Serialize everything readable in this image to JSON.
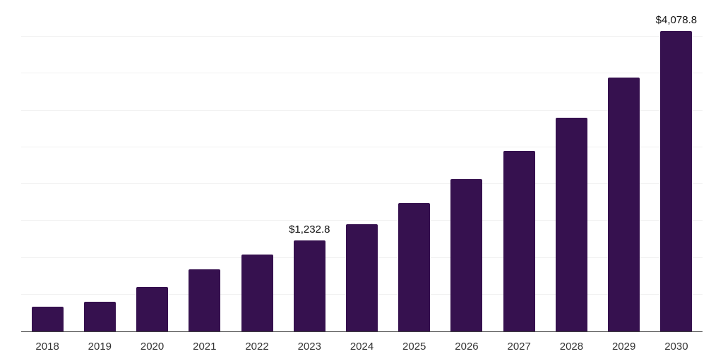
{
  "chart_data": {
    "type": "bar",
    "categories": [
      "2018",
      "2019",
      "2020",
      "2021",
      "2022",
      "2023",
      "2024",
      "2025",
      "2026",
      "2027",
      "2028",
      "2029",
      "2030"
    ],
    "values": [
      340,
      405,
      605,
      845,
      1040,
      1232.8,
      1455,
      1740,
      2065,
      2450,
      2900,
      3445,
      4078.8
    ],
    "title": "",
    "xlabel": "",
    "ylabel": "",
    "ylim": [
      0,
      4500
    ],
    "grid_step": 500,
    "grid": true,
    "legend": false,
    "annotations": [
      {
        "category": "2023",
        "text": "$1,232.8"
      },
      {
        "category": "2030",
        "text": "$4,078.8"
      }
    ]
  },
  "colors": {
    "bar": "#36114F",
    "gridline": "#f1f1f1",
    "axis_line": "#404040",
    "tick_label": "#333333",
    "value_label": "#111111",
    "background": "#ffffff"
  }
}
